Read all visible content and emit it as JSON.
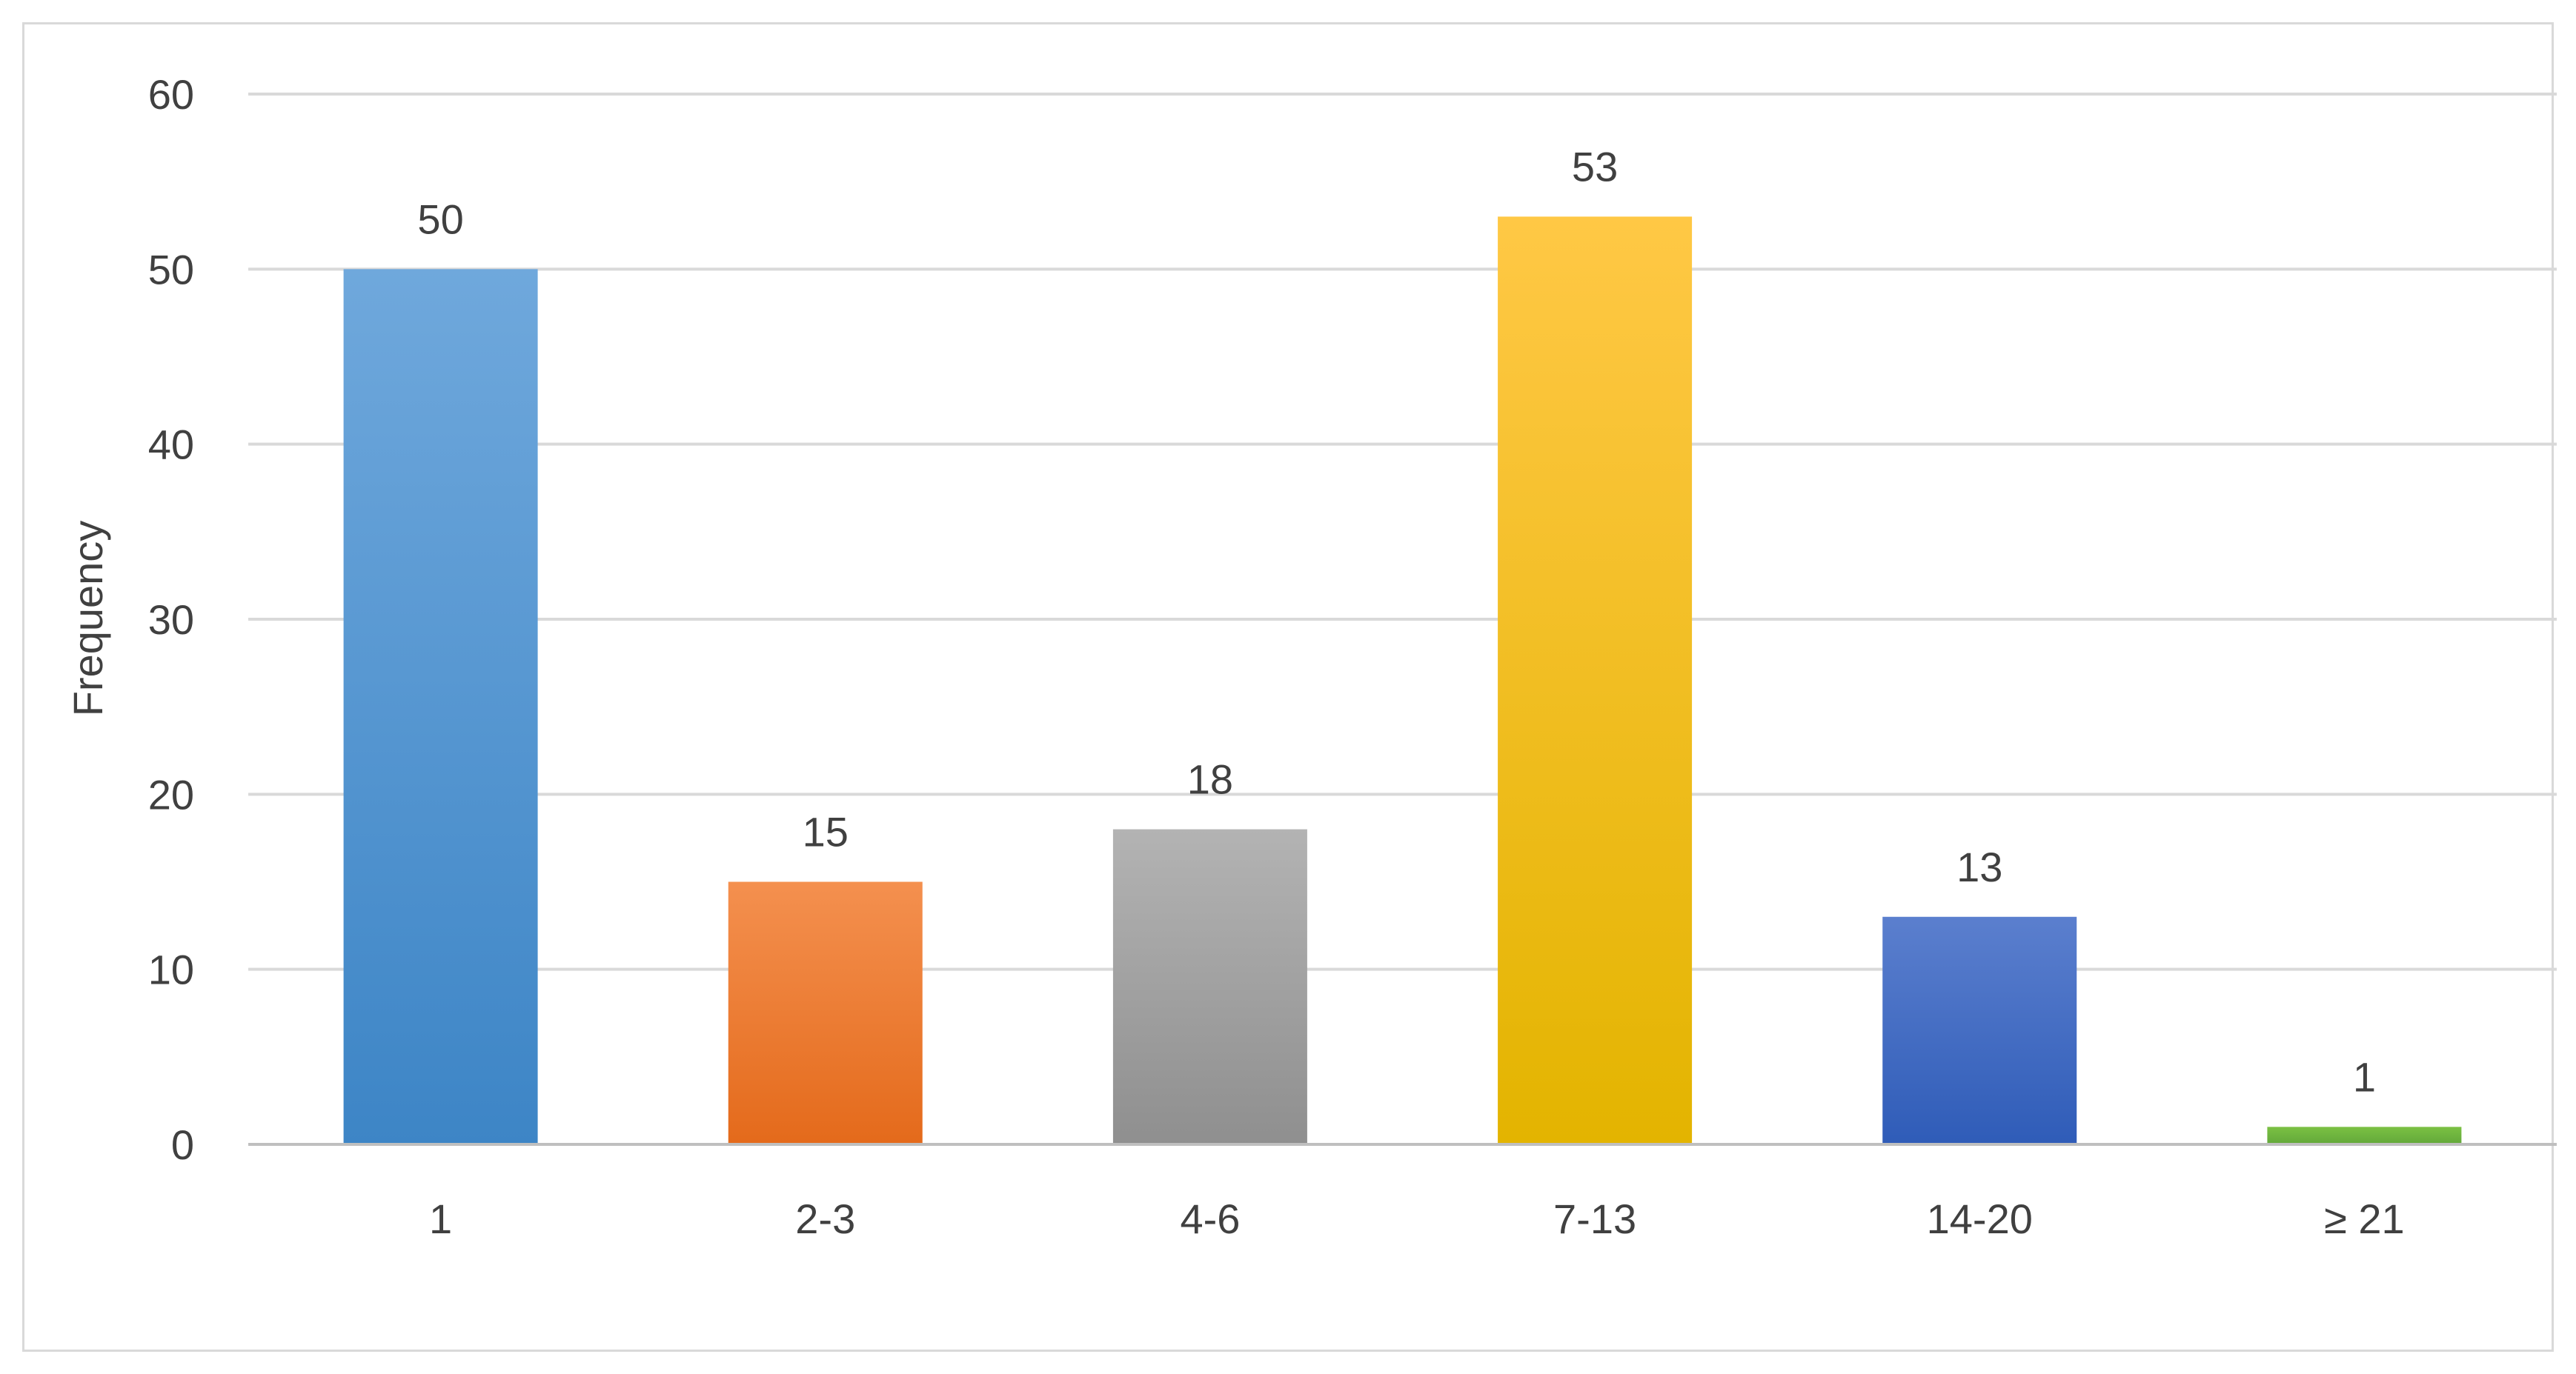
{
  "chart_data": {
    "type": "bar",
    "categories": [
      "1",
      "2-3",
      "4-6",
      "7-13",
      "14-20",
      "≥ 21"
    ],
    "values": [
      50,
      15,
      18,
      53,
      13,
      1
    ],
    "data_labels": [
      "50",
      "15",
      "18",
      "53",
      "13",
      "1"
    ],
    "title": "",
    "xlabel": "",
    "ylabel": "Frequency",
    "ylim": [
      0,
      60
    ],
    "yticks": [
      0,
      10,
      20,
      30,
      40,
      50,
      60
    ],
    "ytick_labels": [
      "0",
      "10",
      "20",
      "30",
      "40",
      "50",
      "60"
    ],
    "grid": true,
    "legend": "none",
    "bar_colors": [
      {
        "top": "#6fa8dc",
        "bottom": "#3d85c6"
      },
      {
        "top": "#f4904f",
        "bottom": "#e46a1b"
      },
      {
        "top": "#b3b3b3",
        "bottom": "#8f8f8f"
      },
      {
        "top": "#ffc845",
        "bottom": "#e3b400"
      },
      {
        "top": "#5b7fce",
        "bottom": "#2f5cb8"
      },
      {
        "top": "#7bc043",
        "bottom": "#62a83a"
      }
    ]
  }
}
